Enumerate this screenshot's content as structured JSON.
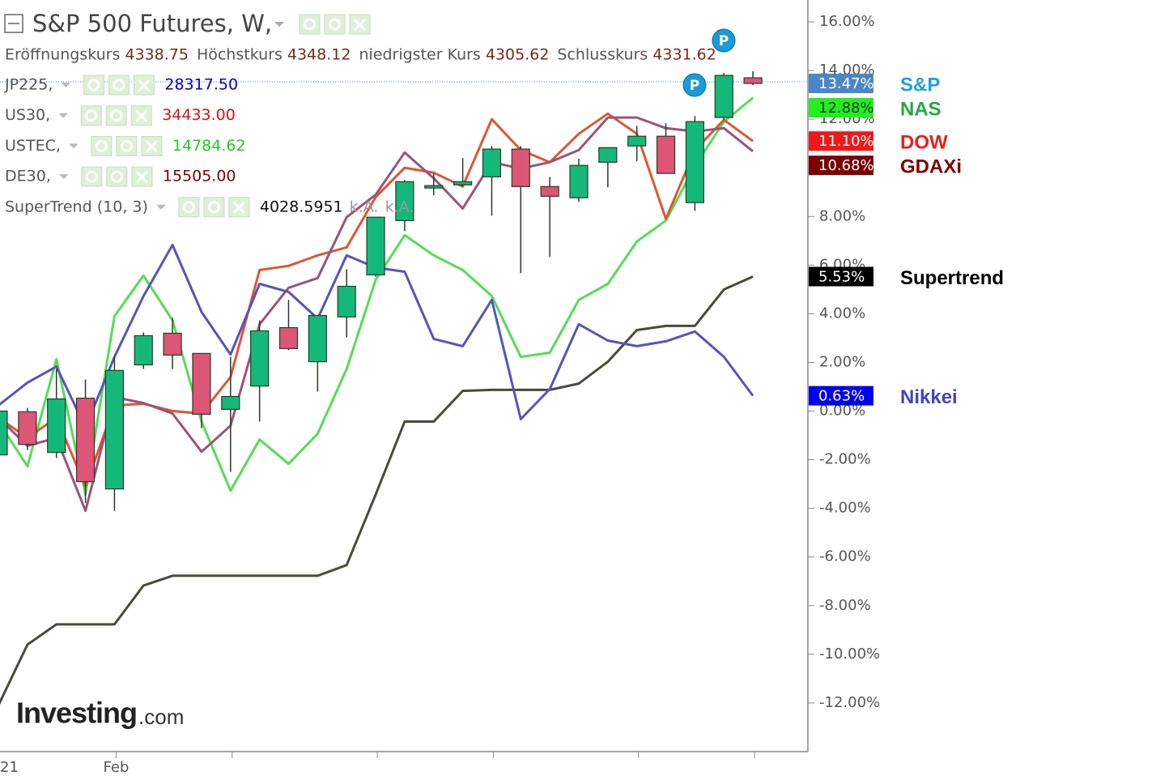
{
  "chart_data": {
    "type": "candlestick",
    "title": "S&P 500 Futures, W,",
    "ohlc_info": [
      {
        "label": "Eröffnungskurs",
        "value": "4338.75"
      },
      {
        "label": "Höchstkurs",
        "value": "4348.12"
      },
      {
        "label": "niedrigster Kurs",
        "value": "4305.62"
      },
      {
        "label": "Schlusskurs",
        "value": "4331.62"
      }
    ],
    "indicators": [
      {
        "name": "JP225,",
        "value": "28317.50",
        "color": "#0000cc"
      },
      {
        "name": "US30,",
        "value": "34433.00",
        "color": "#e01010"
      },
      {
        "name": "USTEC,",
        "value": "14784.62",
        "color": "#22cc22"
      },
      {
        "name": "DE30,",
        "value": "15505.00",
        "color": "#800000"
      },
      {
        "name": "SuperTrend (10, 3)",
        "value": "4028.5951",
        "color": "#111111",
        "extra": [
          "k.A.",
          "k.A."
        ]
      }
    ],
    "categories": [
      "21",
      null,
      null,
      null,
      "Feb",
      null,
      null,
      null,
      null,
      null,
      null,
      null,
      null,
      null,
      null,
      null,
      null,
      null,
      null,
      null,
      null,
      null,
      null,
      null,
      null,
      null,
      null
    ],
    "candles": {
      "name": "S&P",
      "label_color": "#1ea0dc",
      "badge_color": "#4a86c8",
      "badge_text": "#ffffff",
      "up_color": "#14b87a",
      "down_color": "#dd5577",
      "open": [
        -1.8,
        -0.03,
        -1.7,
        0.53,
        -3.2,
        1.9,
        3.2,
        2.37,
        0.07,
        1.03,
        3.43,
        2.03,
        3.87,
        5.6,
        7.83,
        9.17,
        9.3,
        9.63,
        10.77,
        9.23,
        8.77,
        10.23,
        10.9,
        11.3,
        8.57,
        12.07,
        13.7
      ],
      "high": [
        0.2,
        0.13,
        1.73,
        1.3,
        2.23,
        3.23,
        3.83,
        2.37,
        2.23,
        3.73,
        4.57,
        3.93,
        5.83,
        7.97,
        9.5,
        9.77,
        10.4,
        10.9,
        10.9,
        9.63,
        10.37,
        10.83,
        11.73,
        11.83,
        12.13,
        13.9,
        13.97
      ],
      "low": [
        -2.0,
        -1.6,
        -1.93,
        -3.77,
        -4.1,
        1.73,
        1.73,
        -0.7,
        -2.5,
        -0.43,
        2.5,
        0.8,
        3.03,
        5.53,
        7.4,
        8.87,
        9.23,
        8.03,
        5.67,
        6.33,
        8.6,
        9.2,
        10.27,
        9.77,
        8.23,
        11.97,
        13.4
      ],
      "close": [
        0,
        -1.37,
        0.5,
        -2.9,
        1.67,
        3.1,
        2.3,
        -0.13,
        0.6,
        3.3,
        2.57,
        3.93,
        5.13,
        7.97,
        9.43,
        9.27,
        9.43,
        10.77,
        9.23,
        8.83,
        10.1,
        10.83,
        11.3,
        9.77,
        11.9,
        13.8,
        13.47
      ],
      "value_labels": [
        null,
        null,
        null,
        null,
        null,
        null,
        null,
        null,
        null,
        null,
        null,
        null,
        null,
        null,
        null,
        null,
        null,
        null,
        null,
        null,
        null,
        null,
        null,
        null,
        null,
        null,
        "13.47%"
      ]
    },
    "series": [
      {
        "name": "NAS",
        "color": "#55dd55",
        "label_color": "#22aa44",
        "badge_color": "#22ee22",
        "badge_text": "#1a3a1a",
        "values": [
          -0.43,
          -2.27,
          2.13,
          -3.43,
          3.9,
          5.57,
          3.73,
          -0.43,
          -3.27,
          -1.17,
          -2.17,
          -0.93,
          1.73,
          5.4,
          7.23,
          6.4,
          5.8,
          4.73,
          2.23,
          2.4,
          4.57,
          5.23,
          6.97,
          7.83,
          10.07,
          11.9,
          12.88
        ],
        "value_labels": [
          null,
          null,
          null,
          null,
          null,
          null,
          null,
          null,
          null,
          null,
          null,
          null,
          null,
          null,
          null,
          null,
          null,
          null,
          null,
          null,
          null,
          null,
          null,
          null,
          null,
          null,
          "12.88%"
        ]
      },
      {
        "name": "DOW",
        "color": "#e05535",
        "label_color": "#e82020",
        "badge_color": "#f01818",
        "badge_text": "#ffffff",
        "values": [
          -0.27,
          -1.1,
          -0.27,
          -3.1,
          0.23,
          0.3,
          0,
          -0.1,
          1.4,
          5.8,
          5.97,
          6.4,
          6.73,
          8.8,
          10,
          9.8,
          9.23,
          12,
          10.73,
          10.23,
          11.4,
          12.23,
          11.4,
          7.9,
          10.73,
          11.97,
          11.1
        ],
        "value_labels": [
          null,
          null,
          null,
          null,
          null,
          null,
          null,
          null,
          null,
          null,
          null,
          null,
          null,
          null,
          null,
          null,
          null,
          null,
          null,
          null,
          null,
          null,
          null,
          null,
          null,
          null,
          "11.10%"
        ]
      },
      {
        "name": "GDAXi",
        "color": "#995577",
        "label_color": "#800000",
        "badge_color": "#7a0000",
        "badge_text": "#ffffff",
        "values": [
          -0.27,
          -1.43,
          -1.1,
          -4.1,
          0.57,
          0.33,
          -0.1,
          -1.67,
          -0.6,
          3.57,
          5.07,
          5.47,
          7.97,
          8.9,
          10.63,
          9.57,
          8.33,
          10.23,
          9.97,
          10.23,
          10.73,
          12.07,
          12.07,
          11.63,
          11.5,
          11.63,
          10.68
        ],
        "value_labels": [
          null,
          null,
          null,
          null,
          null,
          null,
          null,
          null,
          null,
          null,
          null,
          null,
          null,
          null,
          null,
          null,
          null,
          null,
          null,
          null,
          null,
          null,
          null,
          null,
          null,
          null,
          "10.68%"
        ]
      },
      {
        "name": "Supertrend",
        "color": "#4a4a3a",
        "label_color": "#000000",
        "badge_color": "#000000",
        "badge_text": "#ffffff",
        "values": [
          -12.1,
          -9.6,
          -8.77,
          -8.77,
          -8.77,
          -7.17,
          -6.77,
          -6.77,
          -6.77,
          -6.77,
          -6.77,
          -6.77,
          -6.33,
          -3.43,
          -0.43,
          -0.43,
          0.83,
          0.87,
          0.87,
          0.87,
          1.13,
          2.03,
          3.33,
          3.5,
          3.5,
          5,
          5.53
        ],
        "value_labels": [
          null,
          null,
          null,
          null,
          null,
          null,
          null,
          null,
          null,
          null,
          null,
          null,
          null,
          null,
          null,
          null,
          null,
          null,
          null,
          null,
          null,
          null,
          null,
          null,
          null,
          null,
          "5.53%"
        ]
      },
      {
        "name": "Nikkei",
        "color": "#5555bb",
        "label_color": "#4444bb",
        "badge_color": "#0000ee",
        "badge_text": "#ffffff",
        "values": [
          0.23,
          1.17,
          1.83,
          -0.67,
          2.23,
          4.73,
          6.83,
          4.07,
          2.33,
          5.23,
          4.9,
          3.8,
          6.4,
          5.9,
          5.73,
          2.97,
          2.67,
          4.57,
          -0.33,
          0.9,
          3.57,
          2.9,
          2.67,
          2.87,
          3.27,
          2.23,
          0.63
        ],
        "value_labels": [
          null,
          null,
          null,
          null,
          null,
          null,
          null,
          null,
          null,
          null,
          null,
          null,
          null,
          null,
          null,
          null,
          null,
          null,
          null,
          null,
          null,
          null,
          null,
          null,
          null,
          null,
          "0.63%"
        ]
      }
    ],
    "ylim": [
      -14,
      16.9
    ],
    "yticks": [
      {
        "value": 16,
        "label": "16.00%"
      },
      {
        "value": 14,
        "label": "14.00%"
      },
      {
        "value": 12,
        "label": "12.00%"
      },
      {
        "value": 10,
        "label": "10.00%"
      },
      {
        "value": 8,
        "label": "8.00%"
      },
      {
        "value": 6,
        "label": "6.00%"
      },
      {
        "value": 4,
        "label": "4.00%"
      },
      {
        "value": 2,
        "label": "2.00%"
      },
      {
        "value": 0,
        "label": "0.00%"
      },
      {
        "value": -2,
        "label": "-2.00%"
      },
      {
        "value": -4,
        "label": "-4.00%"
      },
      {
        "value": -6,
        "label": "-6.00%"
      },
      {
        "value": -8,
        "label": "-8.00%"
      },
      {
        "value": -10,
        "label": "-10.00%"
      },
      {
        "value": -12,
        "label": "-12.00%"
      }
    ],
    "annotations": [
      "P",
      "P"
    ],
    "watermark": {
      "brand": "Investing",
      "suffix": ".com"
    }
  }
}
